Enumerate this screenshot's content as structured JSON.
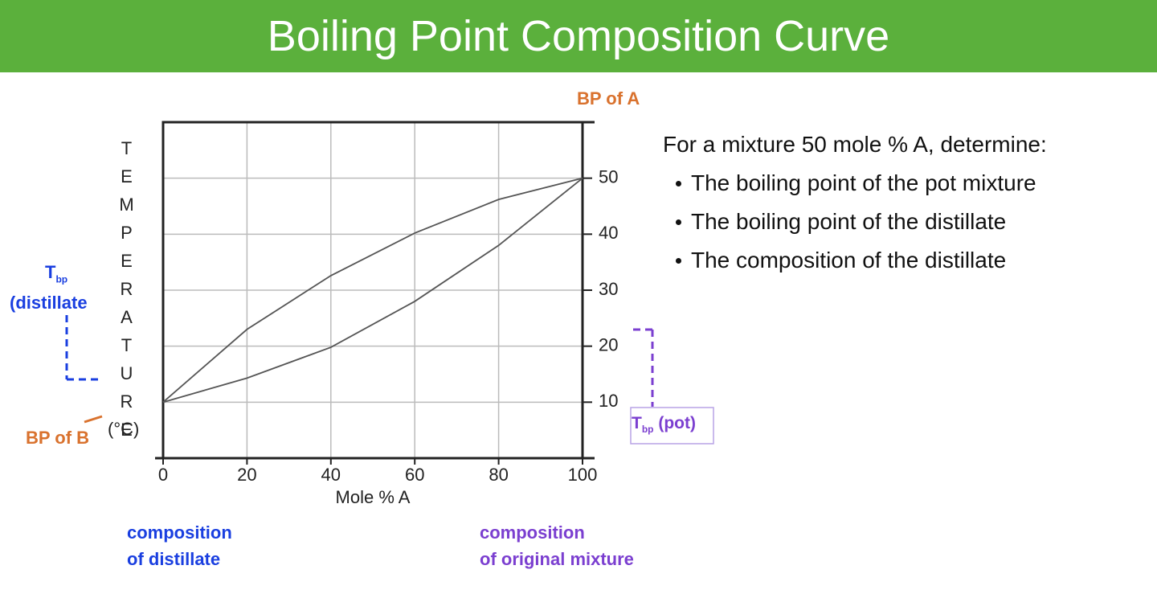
{
  "slide": {
    "title": "Boiling Point Composition Curve",
    "prompt": "For a mixture 50 mole % A, determine:",
    "bullets": [
      "The boiling point of the pot mixture",
      "The boiling point of the distillate",
      "The composition of the distillate"
    ]
  },
  "chart_data": {
    "type": "line",
    "x": [
      0,
      20,
      40,
      60,
      80,
      100
    ],
    "series": [
      {
        "color": "#555555",
        "values": [
          10,
          23,
          32.6,
          40.2,
          46.2,
          50
        ]
      },
      {
        "color": "#555555",
        "values": [
          10,
          14.3,
          19.8,
          28,
          38,
          50
        ]
      }
    ],
    "xlim": [
      0,
      100
    ],
    "xticks": [
      0,
      20,
      40,
      60,
      80,
      100
    ],
    "ylim": [
      0,
      60
    ],
    "yticks": [
      10,
      20,
      30,
      40,
      50
    ],
    "xlabel": "Mole % A",
    "ylabel": "TEMPERATURE",
    "ylabel_unit": "(°C)",
    "grid": true,
    "annotations": {
      "bp_a": "BP of A",
      "bp_b": "BP of B",
      "tbp_distillate": {
        "main": "T",
        "sub": "bp",
        "rest": "(distillate"
      },
      "tbp_pot": {
        "main": "T",
        "sub": "bp",
        "rest": "(pot)"
      },
      "comp_distillate": [
        "composition",
        "of distillate"
      ],
      "comp_original": [
        "composition",
        "of original mixture"
      ]
    }
  }
}
